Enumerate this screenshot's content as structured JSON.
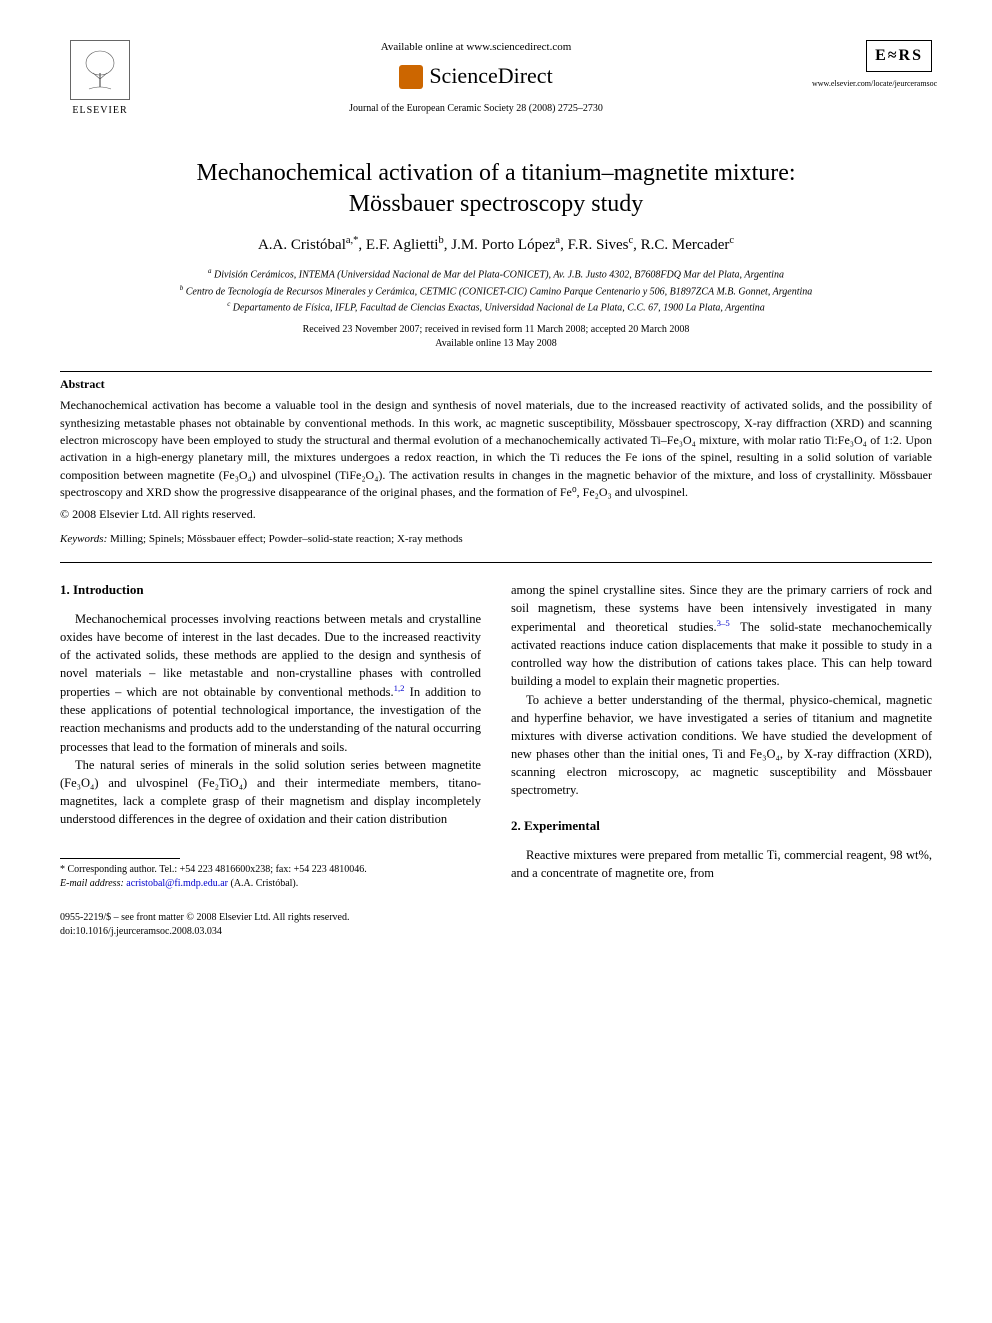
{
  "header": {
    "elsevier_label": "ELSEVIER",
    "available_online": "Available online at www.sciencedirect.com",
    "sciencedirect": "ScienceDirect",
    "journal_ref": "Journal of the European Ceramic Society 28 (2008) 2725–2730",
    "ecers_label": "E≈RS",
    "ecers_url": "www.elsevier.com/locate/jeurceramsoc"
  },
  "title_line1": "Mechanochemical activation of a titanium–magnetite mixture:",
  "title_line2": "Mössbauer spectroscopy study",
  "authors_html": "A.A. Cristóbal<sup>a,*</sup>, E.F. Aglietti<sup>b</sup>, J.M. Porto López<sup>a</sup>, F.R. Sives<sup>c</sup>, R.C. Mercader<sup>c</sup>",
  "affiliations": {
    "a": "División Cerámicos, INTEMA (Universidad Nacional de Mar del Plata-CONICET), Av. J.B. Justo 4302, B7608FDQ Mar del Plata, Argentina",
    "b": "Centro de Tecnología de Recursos Minerales y Cerámica, CETMIC (CONICET-CIC) Camino Parque Centenario y 506, B1897ZCA M.B. Gonnet, Argentina",
    "c": "Departamento de Física, IFLP, Facultad de Ciencias Exactas, Universidad Nacional de La Plata, C.C. 67, 1900 La Plata, Argentina"
  },
  "dates": {
    "line1": "Received 23 November 2007; received in revised form 11 March 2008; accepted 20 March 2008",
    "line2": "Available online 13 May 2008"
  },
  "abstract": {
    "heading": "Abstract",
    "body": "Mechanochemical activation has become a valuable tool in the design and synthesis of novel materials, due to the increased reactivity of activated solids, and the possibility of synthesizing metastable phases not obtainable by conventional methods. In this work, ac magnetic susceptibility, Mössbauer spectroscopy, X-ray diffraction (XRD) and scanning electron microscopy have been employed to study the structural and thermal evolution of a mechanochemically activated Ti–Fe₃O₄ mixture, with molar ratio Ti:Fe₃O₄ of 1:2. Upon activation in a high-energy planetary mill, the mixtures undergoes a redox reaction, in which the Ti reduces the Fe ions of the spinel, resulting in a solid solution of variable composition between magnetite (Fe₃O₄) and ulvospinel (TiFe₂O₄). The activation results in changes in the magnetic behavior of the mixture, and loss of crystallinity. Mössbauer spectroscopy and XRD show the progressive disappearance of the original phases, and the formation of Fe⁰, Fe₂O₃ and ulvospinel.",
    "copyright": "© 2008 Elsevier Ltd. All rights reserved."
  },
  "keywords": {
    "label": "Keywords:",
    "text": "Milling; Spinels; Mössbauer effect; Powder–solid-state reaction; X-ray methods"
  },
  "sections": {
    "intro_head": "1. Introduction",
    "intro_p1": "Mechanochemical processes involving reactions between metals and crystalline oxides have become of interest in the last decades. Due to the increased reactivity of the activated solids, these methods are applied to the design and synthesis of novel materials – like metastable and non-crystalline phases with controlled properties – which are not obtainable by conventional methods.",
    "intro_p1_tail": " In addition to these applications of potential technological importance, the investigation of the reaction mechanisms and products add to the understanding of the natural occurring processes that lead to the formation of minerals and soils.",
    "intro_p2": "The natural series of minerals in the solid solution series between magnetite (Fe₃O₄) and ulvospinel (Fe₂TiO₄) and their intermediate members, titano-magnetites, lack a complete grasp of their magnetism and display incompletely understood differences in the degree of oxidation and their cation distribution",
    "intro_p2_cont": "among the spinel crystalline sites. Since they are the primary carriers of rock and soil magnetism, these systems have been intensively investigated in many experimental and theoretical studies.",
    "intro_p2_tail": " The solid-state mechanochemically activated reactions induce cation displacements that make it possible to study in a controlled way how the distribution of cations takes place. This can help toward building a model to explain their magnetic properties.",
    "intro_p3": "To achieve a better understanding of the thermal, physico-chemical, magnetic and hyperfine behavior, we have investigated a series of titanium and magnetite mixtures with diverse activation conditions. We have studied the development of new phases other than the initial ones, Ti and Fe₃O₄, by X-ray diffraction (XRD), scanning electron microscopy, ac magnetic susceptibility and Mössbauer spectrometry.",
    "exp_head": "2. Experimental",
    "exp_p1": "Reactive mixtures were prepared from metallic Ti, commercial reagent, 98 wt%, and a concentrate of magnetite ore, from"
  },
  "refs": {
    "r12": "1,2",
    "r35": "3–5"
  },
  "footnote": {
    "corr": "* Corresponding author. Tel.: +54 223 4816600x238; fax: +54 223 4810046.",
    "email_label": "E-mail address:",
    "email": "acristobal@fi.mdp.edu.ar",
    "email_tail": "(A.A. Cristóbal)."
  },
  "footer": {
    "line1": "0955-2219/$ – see front matter © 2008 Elsevier Ltd. All rights reserved.",
    "doi": "doi:10.1016/j.jeurceramsoc.2008.03.034"
  },
  "colors": {
    "link": "#0000cc",
    "text": "#000000",
    "bg": "#ffffff",
    "sd_icon": "#cc6600"
  }
}
